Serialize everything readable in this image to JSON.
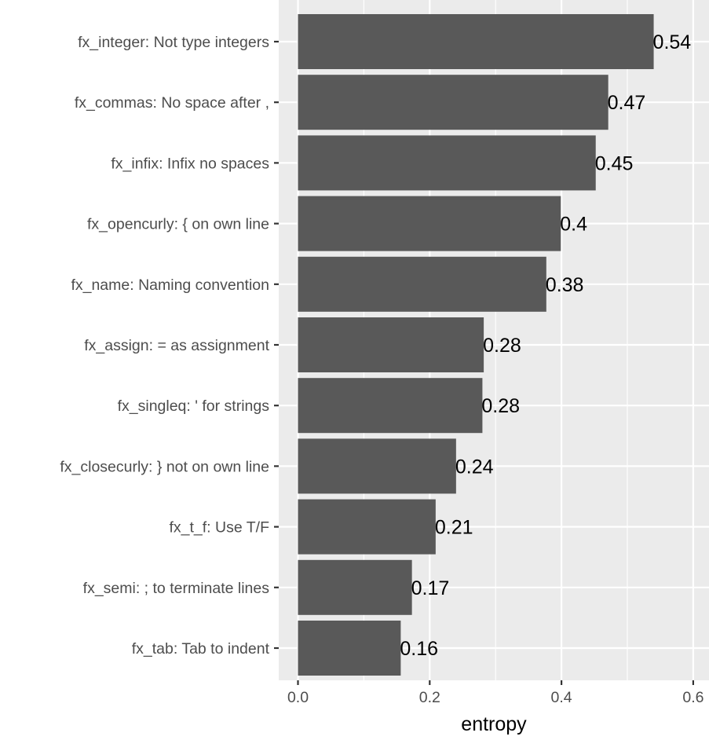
{
  "chart_data": {
    "type": "bar",
    "orientation": "horizontal",
    "categories": [
      "fx_integer: Not type integers",
      "fx_commas: No space after ,",
      "fx_infix: Infix no spaces",
      "fx_opencurly: { on own line",
      "fx_name: Naming convention",
      "fx_assign: = as assignment",
      "fx_singleq: ' for strings",
      "fx_closecurly: } not on own line",
      "fx_t_f: Use T/F",
      "fx_semi: ; to terminate lines",
      "fx_tab: Tab to indent"
    ],
    "values": [
      0.54,
      0.471,
      0.452,
      0.399,
      0.377,
      0.282,
      0.28,
      0.24,
      0.209,
      0.173,
      0.156
    ],
    "value_labels": [
      "0.54",
      "0.47",
      "0.45",
      "0.4",
      "0.38",
      "0.28",
      "0.28",
      "0.24",
      "0.21",
      "0.17",
      "0.16"
    ],
    "title": "",
    "xlabel": "entropy",
    "ylabel": "",
    "xlim": [
      -0.028,
      0.62
    ],
    "x_ticks": [
      0.0,
      0.2,
      0.4,
      0.6
    ],
    "x_tick_labels": [
      "0.0",
      "0.2",
      "0.4",
      "0.6"
    ],
    "grid": true,
    "legend": "none",
    "colors": {
      "bar": "#595959",
      "panel_background": "#ebebeb",
      "grid_major": "#ffffff",
      "text": "#4d4d4d",
      "data_label": "#000000",
      "axis_title": "#000000"
    }
  }
}
